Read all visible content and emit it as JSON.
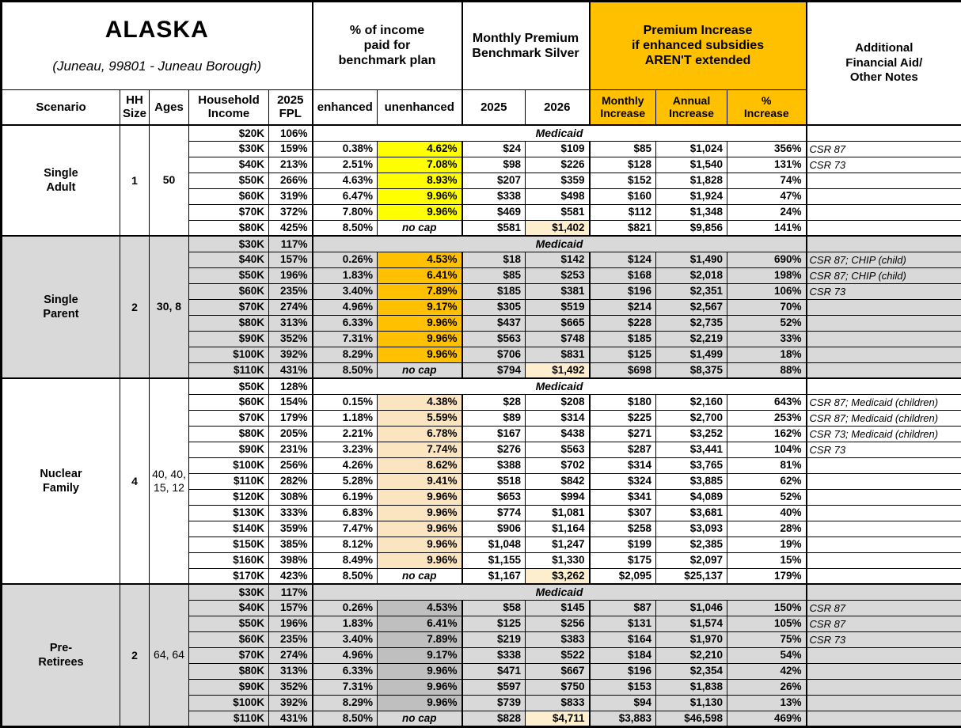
{
  "title": {
    "region": "ALASKA",
    "location": "(Juneau, 99801 - Juneau Borough)"
  },
  "header": {
    "pct_income": "% of income\npaid for\nbenchmark plan",
    "premium": "Monthly Premium\nBenchmark Silver",
    "increase": "Premium Increase\nif enhanced subsidies\nAREN'T extended",
    "notes": "Additional\nFinancial Aid/\nOther Notes",
    "cols": {
      "scenario": "Scenario",
      "hh_size": "HH\nSize",
      "ages": "Ages",
      "income": "Household\nIncome",
      "fpl": "2025\nFPL",
      "enhanced": "enhanced",
      "unenhanced": "unenhanced",
      "y2025": "2025",
      "y2026": "2026",
      "monthly": "Monthly\nIncrease",
      "annual": "Annual\nIncrease",
      "pct": "%\nIncrease"
    }
  },
  "labels": {
    "medicaid": "Medicaid",
    "no_cap": "no cap"
  },
  "colors": {
    "header_orange": "#FFC000",
    "band_gray": "#D9D9D9",
    "highlight_yellow": "#FFFF00",
    "highlight_orange": "#FFC000",
    "highlight_tan": "#FBE5C0",
    "highlight_dark_gray": "#BFBFBF",
    "cliff_highlight": "#FDEFCE"
  },
  "groups": [
    {
      "scenario": "Single\nAdult",
      "hh_size": "1",
      "ages": "50",
      "ages_bold": true,
      "band": "white",
      "unenhanced_color": "#FFFF00",
      "rows": [
        {
          "income": "$20K",
          "fpl": "106%",
          "medicaid": true
        },
        {
          "income": "$30K",
          "fpl": "159%",
          "enhanced": "0.38%",
          "unenhanced": "4.62%",
          "p2025": "$24",
          "p2026": "$109",
          "monthly": "$85",
          "annual": "$1,024",
          "pct": "356%",
          "notes": "CSR 87"
        },
        {
          "income": "$40K",
          "fpl": "213%",
          "enhanced": "2.51%",
          "unenhanced": "7.08%",
          "p2025": "$98",
          "p2026": "$226",
          "monthly": "$128",
          "annual": "$1,540",
          "pct": "131%",
          "notes": "CSR 73"
        },
        {
          "income": "$50K",
          "fpl": "266%",
          "enhanced": "4.63%",
          "unenhanced": "8.93%",
          "p2025": "$207",
          "p2026": "$359",
          "monthly": "$152",
          "annual": "$1,828",
          "pct": "74%",
          "notes": ""
        },
        {
          "income": "$60K",
          "fpl": "319%",
          "enhanced": "6.47%",
          "unenhanced": "9.96%",
          "p2025": "$338",
          "p2026": "$498",
          "monthly": "$160",
          "annual": "$1,924",
          "pct": "47%",
          "notes": ""
        },
        {
          "income": "$70K",
          "fpl": "372%",
          "enhanced": "7.80%",
          "unenhanced": "9.96%",
          "p2025": "$469",
          "p2026": "$581",
          "monthly": "$112",
          "annual": "$1,348",
          "pct": "24%",
          "notes": ""
        },
        {
          "income": "$80K",
          "fpl": "425%",
          "enhanced": "8.50%",
          "unenhanced": "no cap",
          "no_cap": true,
          "p2025": "$581",
          "p2026": "$1,402",
          "cliff": true,
          "monthly": "$821",
          "annual": "$9,856",
          "pct": "141%",
          "notes": ""
        }
      ]
    },
    {
      "scenario": "Single\nParent",
      "hh_size": "2",
      "ages": "30, 8",
      "ages_bold": true,
      "band": "gray",
      "unenhanced_color": "#FFC000",
      "rows": [
        {
          "income": "$30K",
          "fpl": "117%",
          "medicaid": true
        },
        {
          "income": "$40K",
          "fpl": "157%",
          "enhanced": "0.26%",
          "unenhanced": "4.53%",
          "p2025": "$18",
          "p2026": "$142",
          "monthly": "$124",
          "annual": "$1,490",
          "pct": "690%",
          "notes": "CSR 87; CHIP (child)"
        },
        {
          "income": "$50K",
          "fpl": "196%",
          "enhanced": "1.83%",
          "unenhanced": "6.41%",
          "p2025": "$85",
          "p2026": "$253",
          "monthly": "$168",
          "annual": "$2,018",
          "pct": "198%",
          "notes": "CSR 87; CHIP (child)"
        },
        {
          "income": "$60K",
          "fpl": "235%",
          "enhanced": "3.40%",
          "unenhanced": "7.89%",
          "p2025": "$185",
          "p2026": "$381",
          "monthly": "$196",
          "annual": "$2,351",
          "pct": "106%",
          "notes": "CSR 73"
        },
        {
          "income": "$70K",
          "fpl": "274%",
          "enhanced": "4.96%",
          "unenhanced": "9.17%",
          "p2025": "$305",
          "p2026": "$519",
          "monthly": "$214",
          "annual": "$2,567",
          "pct": "70%",
          "notes": ""
        },
        {
          "income": "$80K",
          "fpl": "313%",
          "enhanced": "6.33%",
          "unenhanced": "9.96%",
          "p2025": "$437",
          "p2026": "$665",
          "monthly": "$228",
          "annual": "$2,735",
          "pct": "52%",
          "notes": ""
        },
        {
          "income": "$90K",
          "fpl": "352%",
          "enhanced": "7.31%",
          "unenhanced": "9.96%",
          "p2025": "$563",
          "p2026": "$748",
          "monthly": "$185",
          "annual": "$2,219",
          "pct": "33%",
          "notes": ""
        },
        {
          "income": "$100K",
          "fpl": "392%",
          "enhanced": "8.29%",
          "unenhanced": "9.96%",
          "p2025": "$706",
          "p2026": "$831",
          "monthly": "$125",
          "annual": "$1,499",
          "pct": "18%",
          "notes": ""
        },
        {
          "income": "$110K",
          "fpl": "431%",
          "enhanced": "8.50%",
          "unenhanced": "no cap",
          "no_cap": true,
          "p2025": "$794",
          "p2026": "$1,492",
          "cliff": true,
          "monthly": "$698",
          "annual": "$8,375",
          "pct": "88%",
          "notes": ""
        }
      ]
    },
    {
      "scenario": "Nuclear\nFamily",
      "hh_size": "4",
      "ages": "40, 40,\n15, 12",
      "ages_bold": false,
      "band": "white",
      "unenhanced_color": "#FBE5C0",
      "rows": [
        {
          "income": "$50K",
          "fpl": "128%",
          "medicaid": true
        },
        {
          "income": "$60K",
          "fpl": "154%",
          "enhanced": "0.15%",
          "unenhanced": "4.38%",
          "p2025": "$28",
          "p2026": "$208",
          "monthly": "$180",
          "annual": "$2,160",
          "pct": "643%",
          "notes": "CSR 87; Medicaid (children)"
        },
        {
          "income": "$70K",
          "fpl": "179%",
          "enhanced": "1.18%",
          "unenhanced": "5.59%",
          "p2025": "$89",
          "p2026": "$314",
          "monthly": "$225",
          "annual": "$2,700",
          "pct": "253%",
          "notes": "CSR 87; Medicaid (children)"
        },
        {
          "income": "$80K",
          "fpl": "205%",
          "enhanced": "2.21%",
          "unenhanced": "6.78%",
          "p2025": "$167",
          "p2026": "$438",
          "monthly": "$271",
          "annual": "$3,252",
          "pct": "162%",
          "notes": "CSR 73; Medicaid (children)"
        },
        {
          "income": "$90K",
          "fpl": "231%",
          "enhanced": "3.23%",
          "unenhanced": "7.74%",
          "p2025": "$276",
          "p2026": "$563",
          "monthly": "$287",
          "annual": "$3,441",
          "pct": "104%",
          "notes": "CSR 73"
        },
        {
          "income": "$100K",
          "fpl": "256%",
          "enhanced": "4.26%",
          "unenhanced": "8.62%",
          "p2025": "$388",
          "p2026": "$702",
          "monthly": "$314",
          "annual": "$3,765",
          "pct": "81%",
          "notes": ""
        },
        {
          "income": "$110K",
          "fpl": "282%",
          "enhanced": "5.28%",
          "unenhanced": "9.41%",
          "p2025": "$518",
          "p2026": "$842",
          "monthly": "$324",
          "annual": "$3,885",
          "pct": "62%",
          "notes": ""
        },
        {
          "income": "$120K",
          "fpl": "308%",
          "enhanced": "6.19%",
          "unenhanced": "9.96%",
          "p2025": "$653",
          "p2026": "$994",
          "monthly": "$341",
          "annual": "$4,089",
          "pct": "52%",
          "notes": ""
        },
        {
          "income": "$130K",
          "fpl": "333%",
          "enhanced": "6.83%",
          "unenhanced": "9.96%",
          "p2025": "$774",
          "p2026": "$1,081",
          "monthly": "$307",
          "annual": "$3,681",
          "pct": "40%",
          "notes": ""
        },
        {
          "income": "$140K",
          "fpl": "359%",
          "enhanced": "7.47%",
          "unenhanced": "9.96%",
          "p2025": "$906",
          "p2026": "$1,164",
          "monthly": "$258",
          "annual": "$3,093",
          "pct": "28%",
          "notes": ""
        },
        {
          "income": "$150K",
          "fpl": "385%",
          "enhanced": "8.12%",
          "unenhanced": "9.96%",
          "p2025": "$1,048",
          "p2026": "$1,247",
          "monthly": "$199",
          "annual": "$2,385",
          "pct": "19%",
          "notes": ""
        },
        {
          "income": "$160K",
          "fpl": "398%",
          "enhanced": "8.49%",
          "unenhanced": "9.96%",
          "p2025": "$1,155",
          "p2026": "$1,330",
          "monthly": "$175",
          "annual": "$2,097",
          "pct": "15%",
          "notes": ""
        },
        {
          "income": "$170K",
          "fpl": "423%",
          "enhanced": "8.50%",
          "unenhanced": "no cap",
          "no_cap": true,
          "p2025": "$1,167",
          "p2026": "$3,262",
          "cliff": true,
          "monthly": "$2,095",
          "annual": "$25,137",
          "pct": "179%",
          "notes": ""
        }
      ]
    },
    {
      "scenario": "Pre-\nRetirees",
      "hh_size": "2",
      "ages": "64, 64",
      "ages_bold": false,
      "band": "gray",
      "unenhanced_color": "#BFBFBF",
      "rows": [
        {
          "income": "$30K",
          "fpl": "117%",
          "medicaid": true
        },
        {
          "income": "$40K",
          "fpl": "157%",
          "enhanced": "0.26%",
          "unenhanced": "4.53%",
          "p2025": "$58",
          "p2026": "$145",
          "monthly": "$87",
          "annual": "$1,046",
          "pct": "150%",
          "notes": "CSR 87"
        },
        {
          "income": "$50K",
          "fpl": "196%",
          "enhanced": "1.83%",
          "unenhanced": "6.41%",
          "p2025": "$125",
          "p2026": "$256",
          "monthly": "$131",
          "annual": "$1,574",
          "pct": "105%",
          "notes": "CSR 87"
        },
        {
          "income": "$60K",
          "fpl": "235%",
          "enhanced": "3.40%",
          "unenhanced": "7.89%",
          "p2025": "$219",
          "p2026": "$383",
          "monthly": "$164",
          "annual": "$1,970",
          "pct": "75%",
          "notes": "CSR 73"
        },
        {
          "income": "$70K",
          "fpl": "274%",
          "enhanced": "4.96%",
          "unenhanced": "9.17%",
          "p2025": "$338",
          "p2026": "$522",
          "monthly": "$184",
          "annual": "$2,210",
          "pct": "54%",
          "notes": ""
        },
        {
          "income": "$80K",
          "fpl": "313%",
          "enhanced": "6.33%",
          "unenhanced": "9.96%",
          "p2025": "$471",
          "p2026": "$667",
          "monthly": "$196",
          "annual": "$2,354",
          "pct": "42%",
          "notes": ""
        },
        {
          "income": "$90K",
          "fpl": "352%",
          "enhanced": "7.31%",
          "unenhanced": "9.96%",
          "p2025": "$597",
          "p2026": "$750",
          "monthly": "$153",
          "annual": "$1,838",
          "pct": "26%",
          "notes": ""
        },
        {
          "income": "$100K",
          "fpl": "392%",
          "enhanced": "8.29%",
          "unenhanced": "9.96%",
          "p2025": "$739",
          "p2026": "$833",
          "monthly": "$94",
          "annual": "$1,130",
          "pct": "13%",
          "notes": ""
        },
        {
          "income": "$110K",
          "fpl": "431%",
          "enhanced": "8.50%",
          "unenhanced": "no cap",
          "no_cap": true,
          "p2025": "$828",
          "p2026": "$4,711",
          "cliff": true,
          "monthly": "$3,883",
          "annual": "$46,598",
          "pct": "469%",
          "notes": ""
        }
      ]
    }
  ]
}
